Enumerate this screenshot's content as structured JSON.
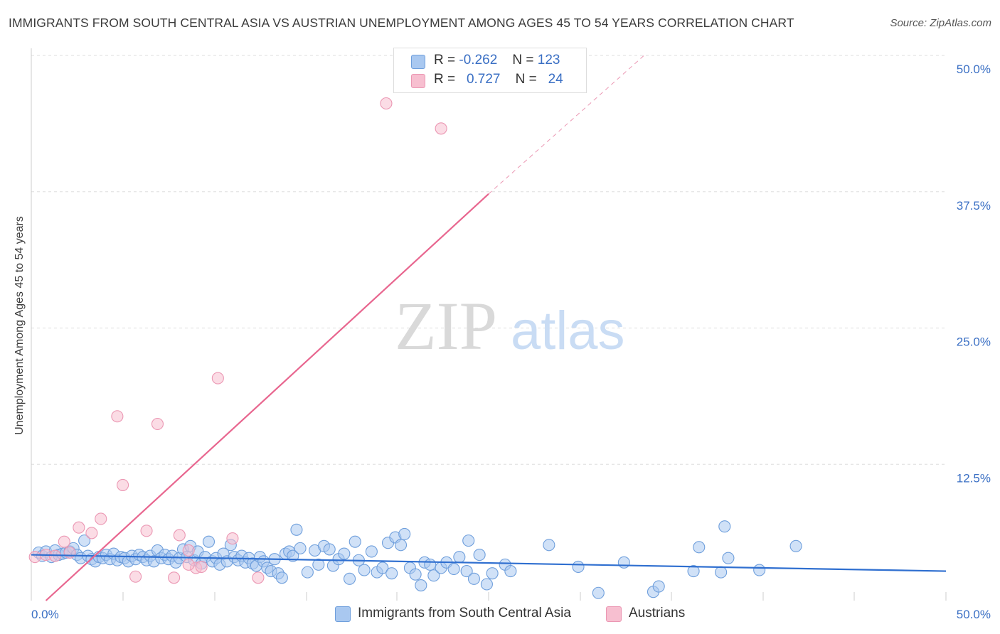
{
  "title": "IMMIGRANTS FROM SOUTH CENTRAL ASIA VS AUSTRIAN UNEMPLOYMENT AMONG AGES 45 TO 54 YEARS CORRELATION CHART",
  "source": "Source: ZipAtlas.com",
  "watermark": {
    "zip": "ZIP",
    "atlas": "atlas"
  },
  "colors": {
    "blue_fill": "#a9c8f0",
    "blue_stroke": "#6f9fdc",
    "blue_line": "#2f6fd0",
    "pink_fill": "#f7bfd0",
    "pink_stroke": "#eb97b3",
    "pink_line": "#e8668f",
    "axis_text": "#3a6fc4",
    "grid": "#dddddd"
  },
  "legend": {
    "rows": [
      {
        "r_label": "R =",
        "r_value": "-0.262",
        "n_label": "N =",
        "n_value": "123",
        "series": "blue"
      },
      {
        "r_label": "R =",
        "r_value": "0.727",
        "n_label": "N =",
        "n_value": "24",
        "series": "pink"
      }
    ]
  },
  "bottom_legend": [
    {
      "label": "Immigrants from South Central Asia",
      "series": "blue"
    },
    {
      "label": "Austrians",
      "series": "pink"
    }
  ],
  "chart_data": {
    "type": "scatter",
    "title": "IMMIGRANTS FROM SOUTH CENTRAL ASIA VS AUSTRIAN UNEMPLOYMENT AMONG AGES 45 TO 54 YEARS CORRELATION CHART",
    "xlabel": "",
    "ylabel": "Unemployment Among Ages 45 to 54 years",
    "xlim": [
      0,
      50
    ],
    "ylim": [
      0,
      50
    ],
    "x_tick_labels": [
      "0.0%",
      "50.0%"
    ],
    "y_ticks": [
      12.5,
      25.0,
      37.5,
      50.0
    ],
    "y_tick_labels": [
      "12.5%",
      "25.0%",
      "37.5%",
      "50.0%"
    ],
    "grid": true,
    "legend_position": "top-center",
    "series": [
      {
        "name": "Immigrants from South Central Asia",
        "color": "blue",
        "R": -0.262,
        "N": 123,
        "trend": {
          "x": [
            0,
            50
          ],
          "y": [
            4.2,
            2.7
          ]
        },
        "points": [
          [
            0.4,
            4.4
          ],
          [
            0.6,
            4.1
          ],
          [
            0.8,
            4.5
          ],
          [
            1.1,
            4.0
          ],
          [
            1.3,
            4.6
          ],
          [
            1.5,
            4.2
          ],
          [
            1.7,
            4.3
          ],
          [
            1.9,
            4.4
          ],
          [
            2.1,
            4.5
          ],
          [
            2.3,
            4.8
          ],
          [
            2.5,
            4.2
          ],
          [
            2.7,
            3.9
          ],
          [
            2.9,
            5.5
          ],
          [
            3.1,
            4.1
          ],
          [
            3.3,
            3.8
          ],
          [
            3.5,
            3.6
          ],
          [
            3.7,
            4.0
          ],
          [
            3.9,
            3.9
          ],
          [
            4.1,
            4.2
          ],
          [
            4.3,
            3.8
          ],
          [
            4.5,
            4.3
          ],
          [
            4.7,
            3.7
          ],
          [
            4.9,
            4.0
          ],
          [
            5.1,
            3.9
          ],
          [
            5.3,
            3.6
          ],
          [
            5.5,
            4.1
          ],
          [
            5.7,
            3.8
          ],
          [
            5.9,
            4.2
          ],
          [
            6.1,
            4.0
          ],
          [
            6.3,
            3.7
          ],
          [
            6.5,
            4.1
          ],
          [
            6.7,
            3.6
          ],
          [
            6.9,
            4.6
          ],
          [
            7.1,
            3.9
          ],
          [
            7.3,
            4.2
          ],
          [
            7.5,
            3.8
          ],
          [
            7.7,
            4.1
          ],
          [
            7.9,
            3.5
          ],
          [
            8.1,
            3.9
          ],
          [
            8.3,
            4.7
          ],
          [
            8.5,
            4.0
          ],
          [
            8.7,
            5.0
          ],
          [
            8.9,
            3.7
          ],
          [
            9.1,
            4.5
          ],
          [
            9.3,
            3.4
          ],
          [
            9.5,
            4.0
          ],
          [
            9.7,
            5.4
          ],
          [
            9.9,
            3.6
          ],
          [
            10.1,
            3.9
          ],
          [
            10.3,
            3.3
          ],
          [
            10.5,
            4.3
          ],
          [
            10.7,
            3.6
          ],
          [
            10.9,
            5.1
          ],
          [
            11.1,
            4.0
          ],
          [
            11.3,
            3.7
          ],
          [
            11.5,
            4.1
          ],
          [
            11.7,
            3.5
          ],
          [
            11.9,
            3.9
          ],
          [
            12.1,
            3.4
          ],
          [
            12.3,
            3.2
          ],
          [
            12.5,
            4.0
          ],
          [
            12.7,
            3.6
          ],
          [
            12.9,
            3.0
          ],
          [
            13.1,
            2.7
          ],
          [
            13.3,
            3.8
          ],
          [
            13.5,
            2.5
          ],
          [
            13.7,
            2.1
          ],
          [
            13.9,
            4.3
          ],
          [
            14.1,
            4.5
          ],
          [
            14.3,
            4.1
          ],
          [
            14.5,
            6.5
          ],
          [
            14.7,
            4.8
          ],
          [
            15.1,
            2.6
          ],
          [
            15.5,
            4.6
          ],
          [
            15.7,
            3.3
          ],
          [
            16.0,
            5.0
          ],
          [
            16.3,
            4.7
          ],
          [
            16.5,
            3.2
          ],
          [
            16.8,
            3.8
          ],
          [
            17.1,
            4.3
          ],
          [
            17.4,
            2.0
          ],
          [
            17.7,
            5.4
          ],
          [
            17.9,
            3.7
          ],
          [
            18.2,
            2.8
          ],
          [
            18.6,
            4.5
          ],
          [
            18.9,
            2.6
          ],
          [
            19.2,
            3.0
          ],
          [
            19.5,
            5.3
          ],
          [
            19.7,
            2.5
          ],
          [
            19.9,
            5.8
          ],
          [
            20.2,
            5.1
          ],
          [
            20.4,
            6.1
          ],
          [
            20.7,
            3.0
          ],
          [
            21.0,
            2.4
          ],
          [
            21.3,
            1.4
          ],
          [
            21.5,
            3.5
          ],
          [
            21.8,
            3.3
          ],
          [
            22.0,
            2.3
          ],
          [
            22.4,
            3.0
          ],
          [
            22.7,
            3.5
          ],
          [
            23.1,
            2.9
          ],
          [
            23.4,
            4.0
          ],
          [
            23.8,
            2.7
          ],
          [
            23.9,
            5.5
          ],
          [
            24.2,
            2.0
          ],
          [
            24.5,
            4.2
          ],
          [
            24.9,
            1.5
          ],
          [
            25.2,
            2.5
          ],
          [
            25.9,
            3.3
          ],
          [
            26.2,
            2.7
          ],
          [
            28.3,
            5.1
          ],
          [
            29.9,
            3.1
          ],
          [
            31.0,
            0.7
          ],
          [
            32.4,
            3.5
          ],
          [
            34.0,
            0.8
          ],
          [
            34.3,
            1.3
          ],
          [
            36.2,
            2.7
          ],
          [
            36.5,
            4.9
          ],
          [
            37.7,
            2.6
          ],
          [
            37.9,
            6.8
          ],
          [
            38.1,
            3.9
          ],
          [
            39.8,
            2.8
          ],
          [
            41.8,
            5.0
          ]
        ]
      },
      {
        "name": "Austrians",
        "color": "pink",
        "R": 0.727,
        "N": 24,
        "trend": {
          "x": [
            0.8,
            25
          ],
          "y": [
            0,
            37.3
          ]
        },
        "trend_extension": {
          "x": [
            25,
            33.5
          ],
          "y": [
            37.3,
            50
          ]
        },
        "points": [
          [
            0.2,
            4.0
          ],
          [
            0.8,
            4.2
          ],
          [
            1.3,
            4.1
          ],
          [
            1.8,
            5.4
          ],
          [
            2.1,
            4.4
          ],
          [
            2.6,
            6.7
          ],
          [
            3.3,
            6.2
          ],
          [
            3.8,
            7.5
          ],
          [
            4.7,
            16.9
          ],
          [
            5.0,
            10.6
          ],
          [
            5.7,
            2.2
          ],
          [
            6.3,
            6.4
          ],
          [
            6.9,
            16.2
          ],
          [
            7.8,
            2.1
          ],
          [
            8.1,
            6.0
          ],
          [
            8.6,
            4.6
          ],
          [
            9.0,
            3.0
          ],
          [
            9.3,
            3.1
          ],
          [
            10.2,
            20.4
          ],
          [
            11.0,
            5.7
          ],
          [
            12.4,
            2.1
          ],
          [
            19.4,
            45.6
          ],
          [
            22.4,
            43.3
          ],
          [
            8.6,
            3.3
          ]
        ]
      }
    ]
  }
}
